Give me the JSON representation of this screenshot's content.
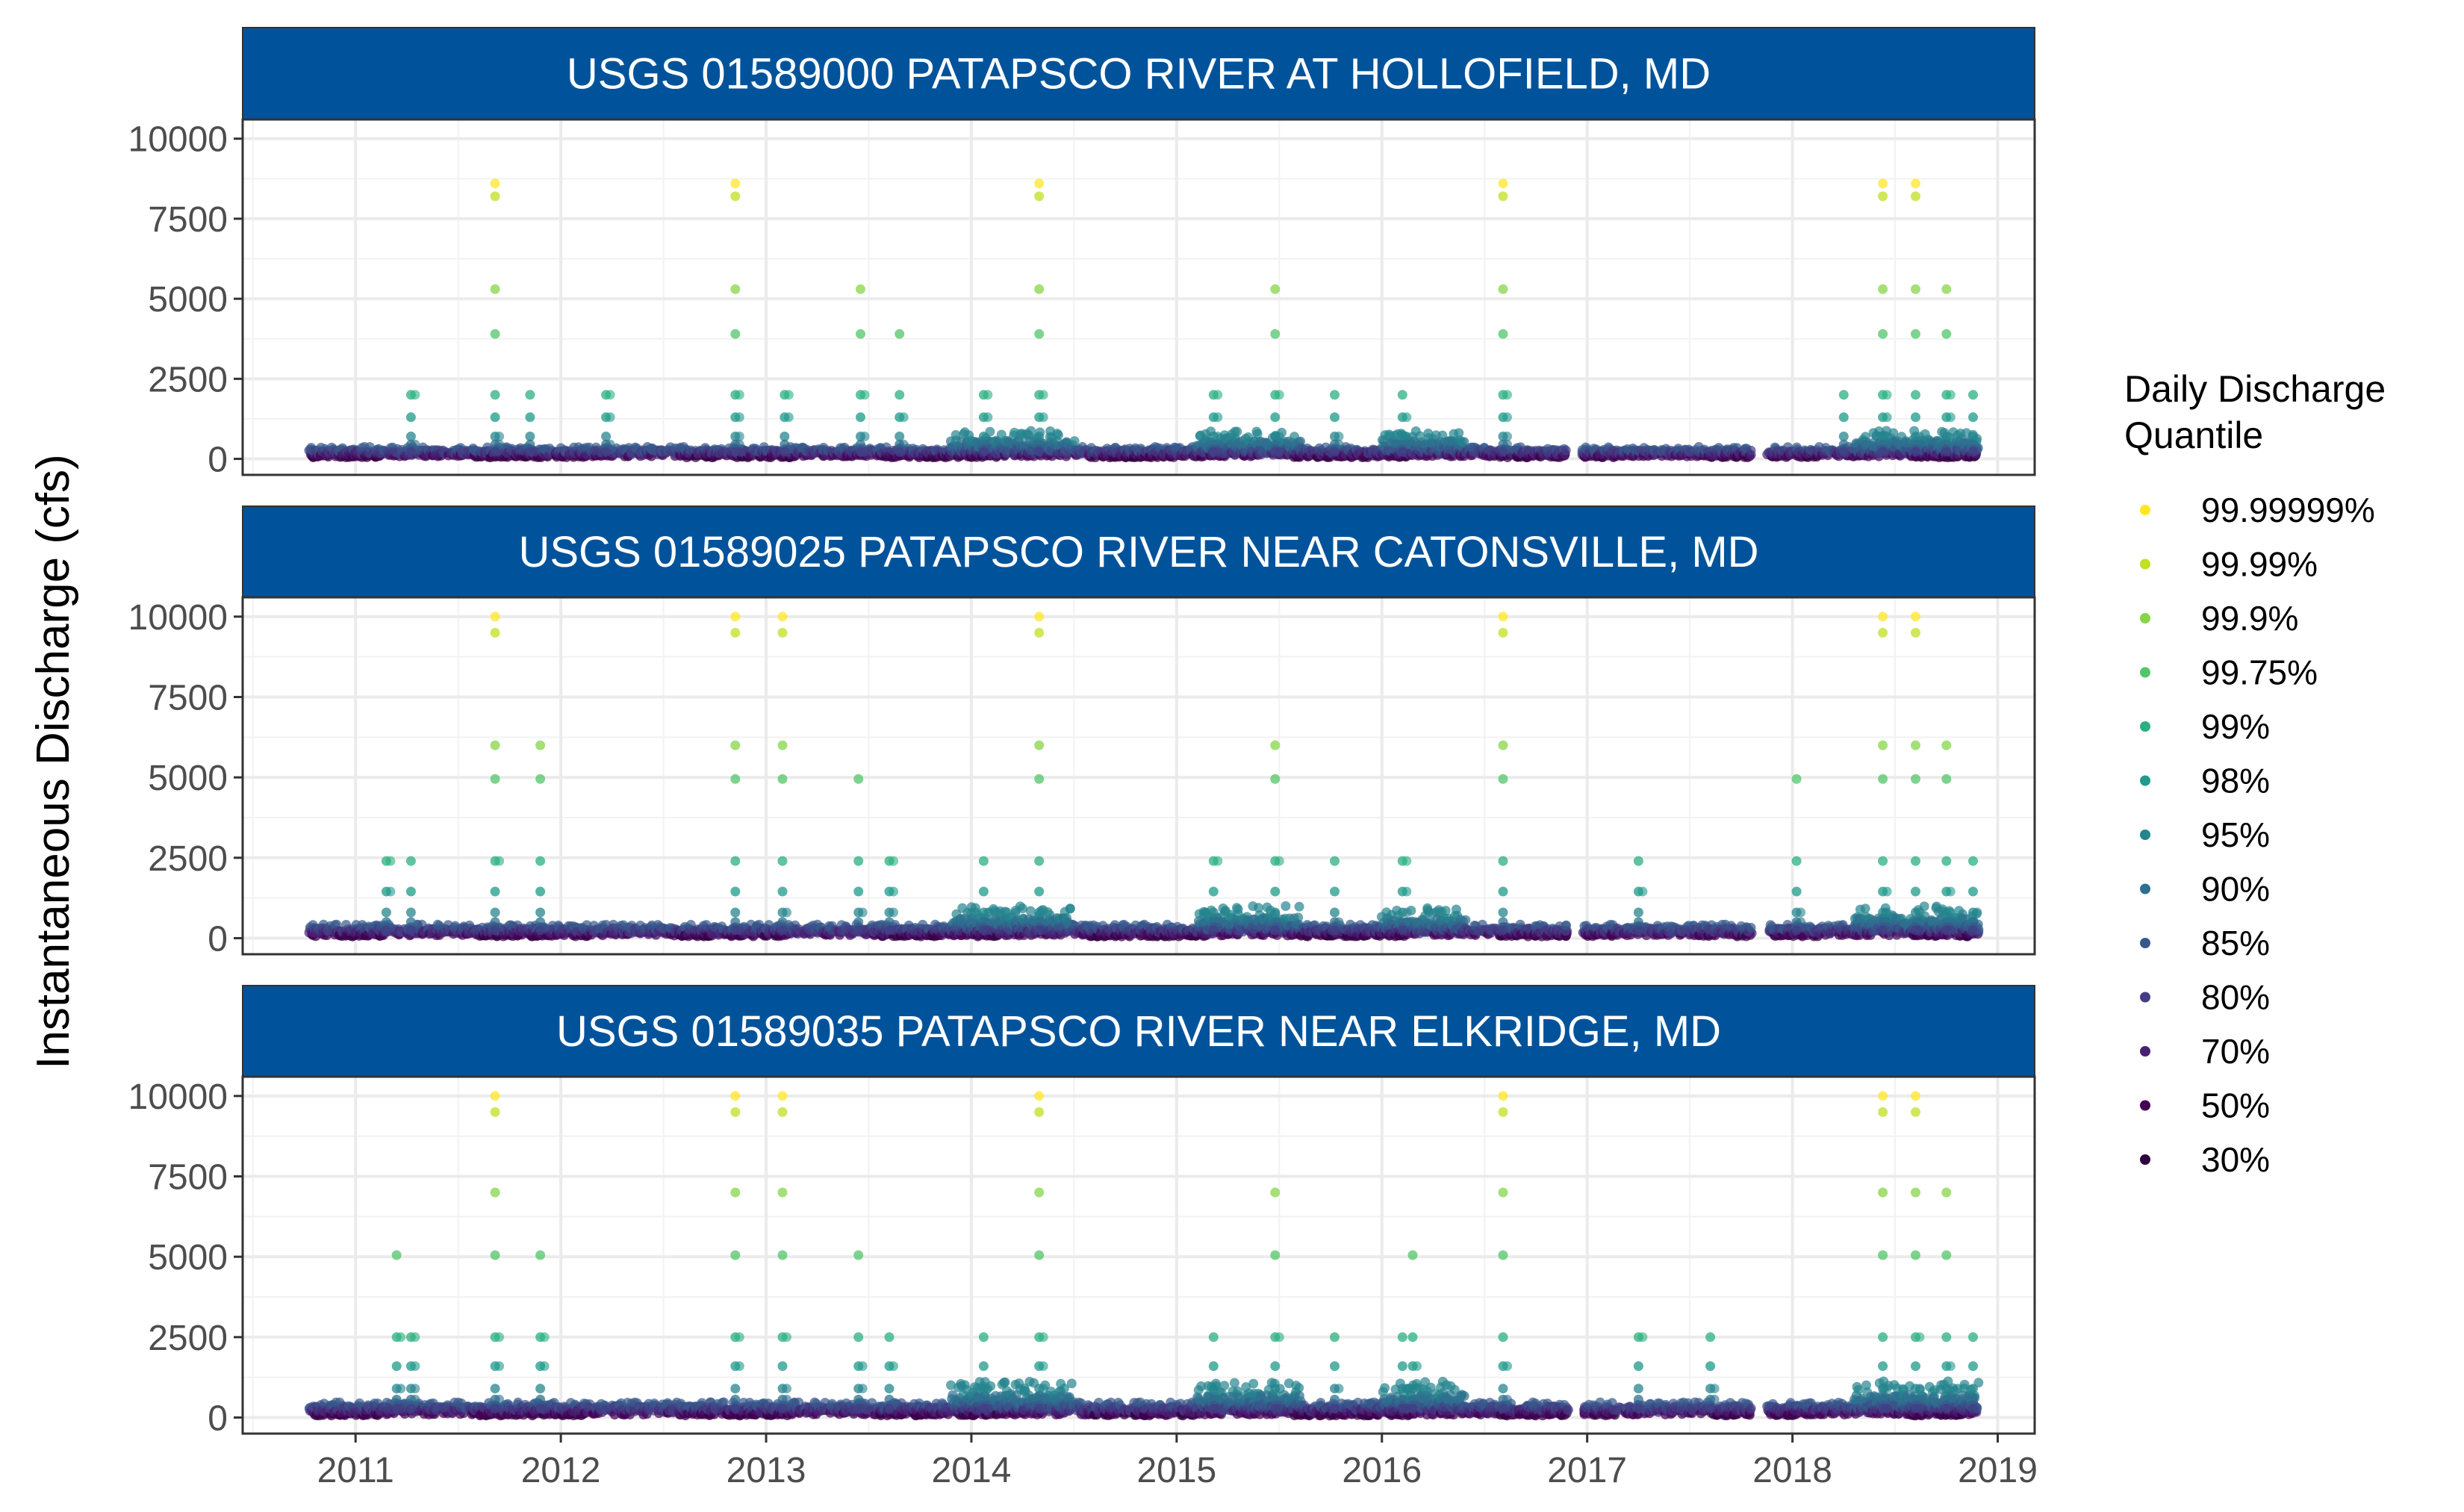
{
  "chart_data": {
    "type": "scatter",
    "ylabel": "Instantaneous Discharge (cfs)",
    "xlabel": "",
    "x_ticks": [
      "2011",
      "2012",
      "2013",
      "2014",
      "2015",
      "2016",
      "2017",
      "2018",
      "2019"
    ],
    "x_range": [
      2010.45,
      2019.18
    ],
    "y_ticks": [
      "0",
      "2500",
      "5000",
      "7500",
      "10000"
    ],
    "ylim": [
      -500,
      10600
    ],
    "grid": true,
    "legend": {
      "title_line1": "Daily Discharge",
      "title_line2": "Quantile",
      "placement": "right",
      "items": [
        {
          "label": "99.99999%",
          "color": "#FDE725"
        },
        {
          "label": "99.99%",
          "color": "#C2DF23"
        },
        {
          "label": "99.9%",
          "color": "#86D549"
        },
        {
          "label": "99.75%",
          "color": "#52C569"
        },
        {
          "label": "99%",
          "color": "#2AB07F"
        },
        {
          "label": "98%",
          "color": "#1E9B8A"
        },
        {
          "label": "95%",
          "color": "#25858E"
        },
        {
          "label": "90%",
          "color": "#2D708E"
        },
        {
          "label": "85%",
          "color": "#38588C"
        },
        {
          "label": "80%",
          "color": "#433E85"
        },
        {
          "label": "70%",
          "color": "#482173"
        },
        {
          "label": "50%",
          "color": "#440154"
        },
        {
          "label": "30%",
          "color": "#30003F"
        }
      ]
    },
    "panels": [
      {
        "title": "USGS 01589000 PATAPSCO RIVER AT HOLLOFIELD, MD",
        "quantile_values": [
          8600,
          8200,
          5300,
          3900,
          2000,
          1300,
          700,
          450,
          300,
          220,
          160,
          100,
          60
        ],
        "events": [
          {
            "x": 2011.68,
            "top": 0
          },
          {
            "x": 2012.85,
            "top": 0
          },
          {
            "x": 2014.33,
            "top": 0
          },
          {
            "x": 2016.59,
            "top": 0
          },
          {
            "x": 2018.44,
            "top": 0
          },
          {
            "x": 2018.6,
            "top": 0
          },
          {
            "x": 2013.46,
            "top": 2
          },
          {
            "x": 2015.48,
            "top": 2
          },
          {
            "x": 2018.75,
            "top": 2
          },
          {
            "x": 2013.65,
            "top": 3
          },
          {
            "x": 2011.85,
            "top": 4
          },
          {
            "x": 2011.27,
            "top": 4
          },
          {
            "x": 2012.22,
            "top": 4
          },
          {
            "x": 2013.09,
            "top": 4
          },
          {
            "x": 2014.06,
            "top": 4
          },
          {
            "x": 2015.18,
            "top": 4
          },
          {
            "x": 2015.77,
            "top": 4
          },
          {
            "x": 2016.1,
            "top": 4
          },
          {
            "x": 2018.25,
            "top": 4
          },
          {
            "x": 2018.88,
            "top": 4
          }
        ]
      },
      {
        "title": "USGS 01589025 PATAPSCO RIVER NEAR CATONSVILLE, MD",
        "quantile_values": [
          10000,
          9500,
          6000,
          4950,
          2400,
          1450,
          800,
          500,
          340,
          250,
          180,
          110,
          70
        ],
        "events": [
          {
            "x": 2011.68,
            "top": 0
          },
          {
            "x": 2012.85,
            "top": 0
          },
          {
            "x": 2013.08,
            "top": 0
          },
          {
            "x": 2014.33,
            "top": 0
          },
          {
            "x": 2016.59,
            "top": 0
          },
          {
            "x": 2018.44,
            "top": 0
          },
          {
            "x": 2018.6,
            "top": 0
          },
          {
            "x": 2011.9,
            "top": 2
          },
          {
            "x": 2015.48,
            "top": 2
          },
          {
            "x": 2018.75,
            "top": 2
          },
          {
            "x": 2013.45,
            "top": 3
          },
          {
            "x": 2018.02,
            "top": 3
          },
          {
            "x": 2011.15,
            "top": 4
          },
          {
            "x": 2011.27,
            "top": 4
          },
          {
            "x": 2013.6,
            "top": 4
          },
          {
            "x": 2014.06,
            "top": 4
          },
          {
            "x": 2015.18,
            "top": 4
          },
          {
            "x": 2015.77,
            "top": 4
          },
          {
            "x": 2016.1,
            "top": 4
          },
          {
            "x": 2017.25,
            "top": 4
          },
          {
            "x": 2018.88,
            "top": 4
          }
        ]
      },
      {
        "title": "USGS 01589035 PATAPSCO RIVER NEAR ELKRIDGE, MD",
        "quantile_values": [
          10000,
          9500,
          7000,
          5050,
          2500,
          1600,
          900,
          560,
          380,
          280,
          200,
          120,
          80
        ],
        "events": [
          {
            "x": 2011.68,
            "top": 0
          },
          {
            "x": 2012.85,
            "top": 0
          },
          {
            "x": 2013.08,
            "top": 0
          },
          {
            "x": 2014.33,
            "top": 0
          },
          {
            "x": 2016.59,
            "top": 0
          },
          {
            "x": 2018.44,
            "top": 0
          },
          {
            "x": 2018.6,
            "top": 0
          },
          {
            "x": 2015.48,
            "top": 2
          },
          {
            "x": 2018.75,
            "top": 2
          },
          {
            "x": 2011.2,
            "top": 3
          },
          {
            "x": 2011.9,
            "top": 3
          },
          {
            "x": 2013.45,
            "top": 3
          },
          {
            "x": 2016.15,
            "top": 3
          },
          {
            "x": 2011.27,
            "top": 4
          },
          {
            "x": 2013.6,
            "top": 4
          },
          {
            "x": 2014.06,
            "top": 4
          },
          {
            "x": 2015.18,
            "top": 4
          },
          {
            "x": 2015.77,
            "top": 4
          },
          {
            "x": 2016.1,
            "top": 4
          },
          {
            "x": 2017.25,
            "top": 4
          },
          {
            "x": 2017.6,
            "top": 4
          },
          {
            "x": 2018.88,
            "top": 4
          }
        ]
      }
    ],
    "data_gaps": [
      [
        2016.9,
        2016.98
      ],
      [
        2017.8,
        2017.88
      ]
    ],
    "record_start": 2010.78,
    "record_end": 2018.9
  }
}
